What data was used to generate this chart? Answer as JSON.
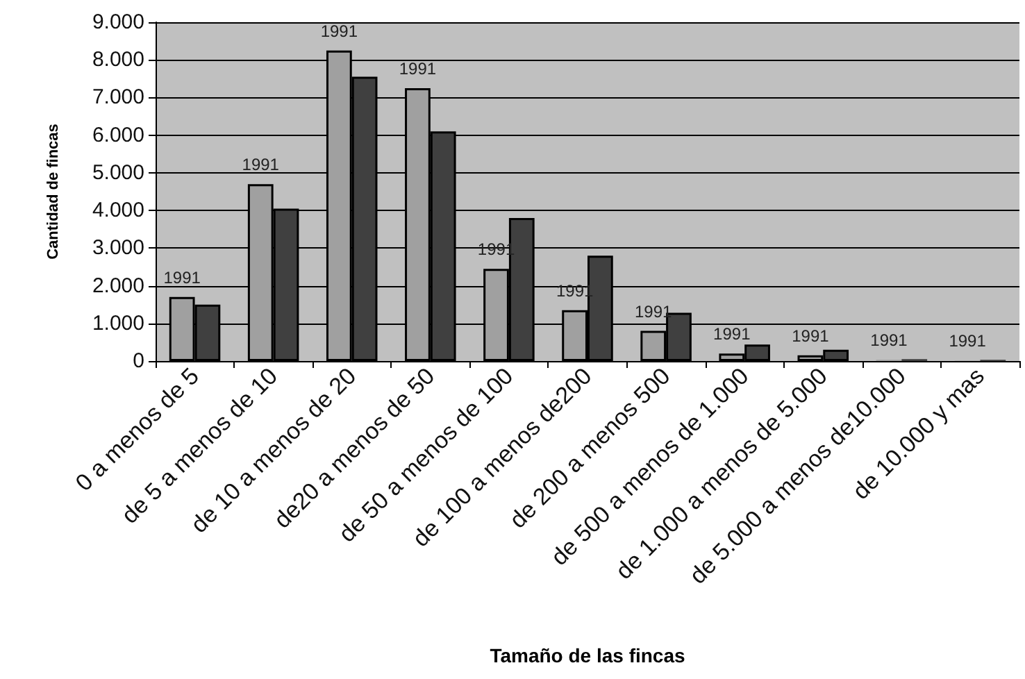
{
  "chart_data": {
    "type": "bar",
    "xlabel": "Tamaño de las fincas",
    "ylabel": "Cantidad de fincas",
    "categories": [
      "0 a menos de 5",
      "de 5 a menos de 10",
      "de 10 a menos de 20",
      "de20 a menos de 50",
      "de 50 a menos de 100",
      "de 100 a menos de200",
      "de 200 a menos 500",
      "de 500 a menos de 1.000",
      "de 1.000 a menos de 5.000",
      "de 5.000 a menos de10.000",
      "de 10.000 y mas"
    ],
    "series": [
      {
        "name": "1991",
        "color": "#a0a0a0",
        "values": [
          1700,
          4700,
          8250,
          7250,
          2450,
          1350,
          800,
          200,
          150,
          30,
          10
        ]
      },
      {
        "color": "#404040",
        "values": [
          1500,
          4050,
          7550,
          6100,
          3800,
          2800,
          1280,
          440,
          300,
          50,
          30
        ]
      }
    ],
    "ylim": [
      0,
      9000
    ],
    "yticks": [
      {
        "value": 0,
        "label": "0"
      },
      {
        "value": 1000,
        "label": "1.000"
      },
      {
        "value": 2000,
        "label": "2.000"
      },
      {
        "value": 3000,
        "label": "3.000"
      },
      {
        "value": 4000,
        "label": "4.000"
      },
      {
        "value": 5000,
        "label": "5.000"
      },
      {
        "value": 6000,
        "label": "6.000"
      },
      {
        "value": 7000,
        "label": "7.000"
      },
      {
        "value": 8000,
        "label": "8.000"
      },
      {
        "value": 9000,
        "label": "9.000"
      }
    ],
    "grid": "y"
  }
}
